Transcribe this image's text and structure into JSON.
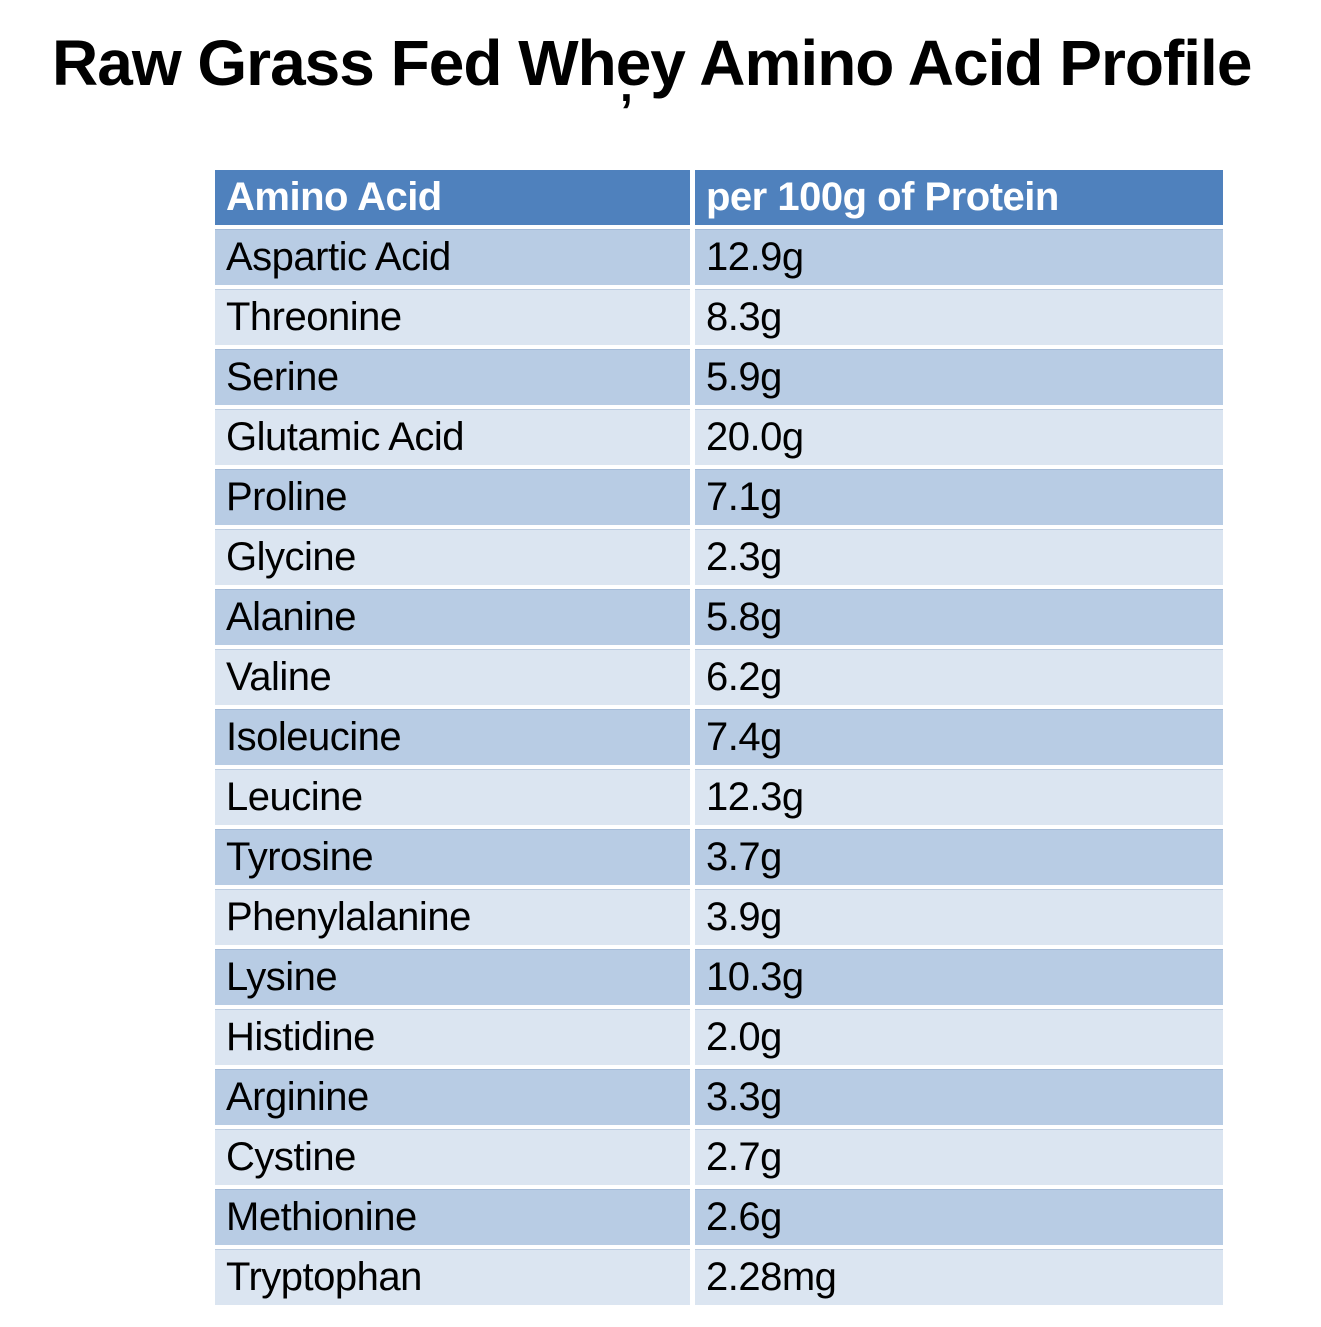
{
  "page": {
    "title": "Raw Grass Fed Whey Amino Acid Profile",
    "stray_mark": ","
  },
  "colors": {
    "header_bg": "#4F81BD",
    "header_text": "#FFFFFF",
    "row_dark": "#B8CCE4",
    "row_light": "#DBE5F1",
    "cell_text": "#000000",
    "background": "#FFFFFF"
  },
  "chart_data": {
    "type": "table",
    "title": "Raw Grass Fed Whey Amino Acid Profile",
    "columns": [
      "Amino Acid",
      "per 100g of Protein"
    ],
    "rows": [
      [
        "Aspartic Acid",
        "12.9g"
      ],
      [
        "Threonine",
        "8.3g"
      ],
      [
        "Serine",
        "5.9g"
      ],
      [
        "Glutamic Acid",
        "20.0g"
      ],
      [
        "Proline",
        "7.1g"
      ],
      [
        "Glycine",
        "2.3g"
      ],
      [
        "Alanine",
        "5.8g"
      ],
      [
        "Valine",
        "6.2g"
      ],
      [
        "Isoleucine",
        "7.4g"
      ],
      [
        "Leucine",
        "12.3g"
      ],
      [
        "Tyrosine",
        "3.7g"
      ],
      [
        "Phenylalanine",
        "3.9g"
      ],
      [
        "Lysine",
        "10.3g"
      ],
      [
        "Histidine",
        "2.0g"
      ],
      [
        "Arginine",
        "3.3g"
      ],
      [
        "Cystine",
        "2.7g"
      ],
      [
        "Methionine",
        "2.6g"
      ],
      [
        "Tryptophan",
        "2.28mg"
      ]
    ],
    "layout": {
      "stripe_order": "first-row-dark",
      "grid": "white 4-5px gaps between cells"
    }
  }
}
